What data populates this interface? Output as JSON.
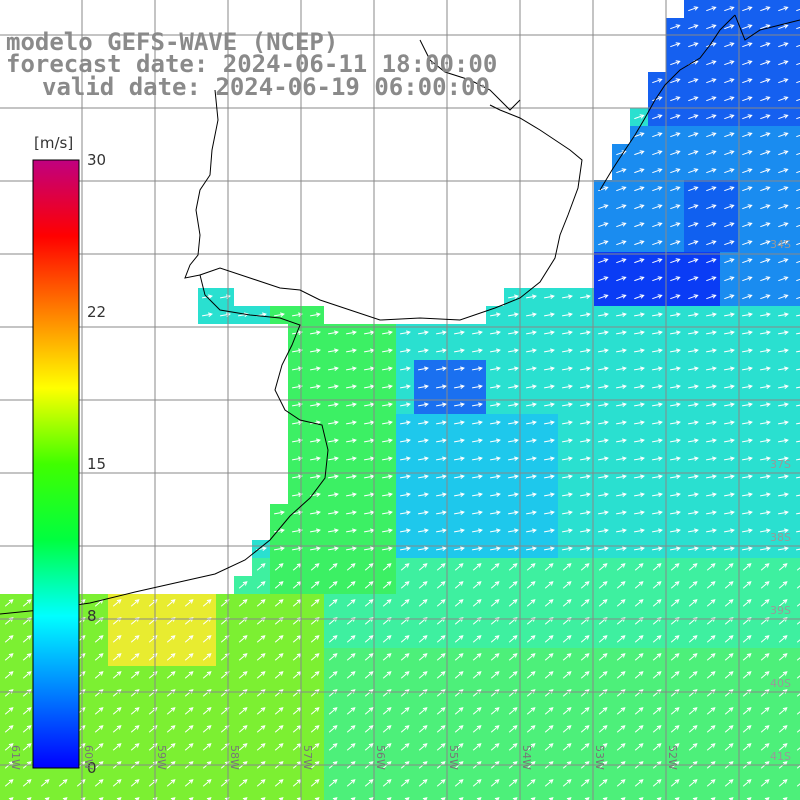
{
  "header": {
    "title_line1": "modelo GEFS-WAVE (NCEP)",
    "title_line2": "forecast date: 2024-06-11 18:00:00",
    "title_line3": "valid date: 2024-06-19 06:00:00"
  },
  "colorbar": {
    "units": "[m/s]",
    "ticks": [
      "30",
      "22",
      "15",
      "8",
      "0"
    ],
    "tick_values": [
      30,
      22,
      15,
      8,
      0
    ],
    "colors": [
      "#0000ff",
      "#0080ff",
      "#00ffff",
      "#00ff40",
      "#40ff00",
      "#ffff00",
      "#ff8000",
      "#ff0000",
      "#c00080"
    ]
  },
  "map": {
    "lat_labels": [
      "34S",
      "37S",
      "38S",
      "39S",
      "40S",
      "41S"
    ],
    "lon_labels": [
      "61W",
      "60W",
      "59W",
      "58W",
      "57W",
      "56W",
      "55W",
      "54W",
      "53W",
      "52W"
    ],
    "land_color": "#ffffff",
    "grid_color": "#888888",
    "coast_color": "#000000",
    "arrow_color": "#ffffff"
  }
}
